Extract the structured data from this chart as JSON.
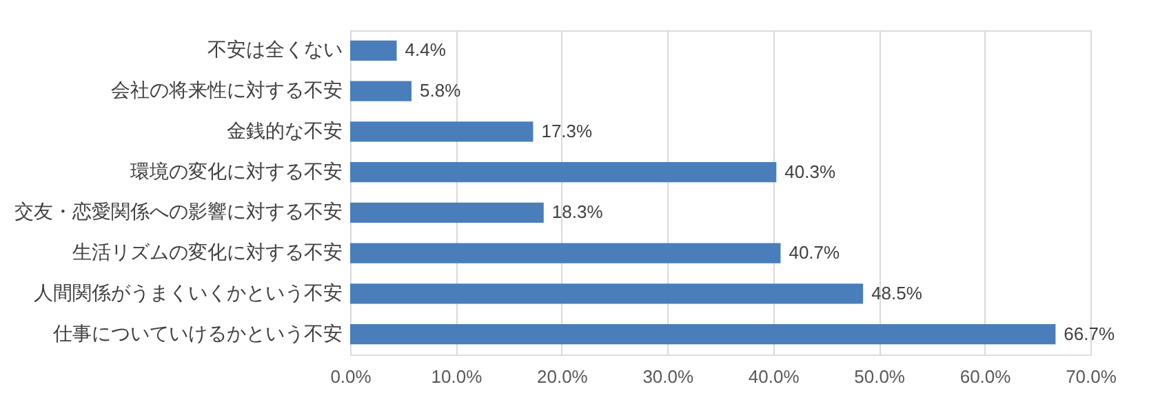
{
  "chart_data": {
    "type": "bar",
    "orientation": "horizontal",
    "categories": [
      "不安は全くない",
      "会社の将来性に対する不安",
      "金銭的な不安",
      "環境の変化に対する不安",
      "交友・恋愛関係への影響に対する不安",
      "生活リズムの変化に対する不安",
      "人間関係がうまくいくかという不安",
      "仕事についていけるかという不安"
    ],
    "values": [
      4.4,
      5.8,
      17.3,
      40.3,
      18.3,
      40.7,
      48.5,
      66.7
    ],
    "value_labels": [
      "4.4%",
      "5.8%",
      "17.3%",
      "40.3%",
      "18.3%",
      "40.7%",
      "48.5%",
      "66.7%"
    ],
    "color": "#4a7ebb",
    "xlim": [
      0,
      70
    ],
    "xticks": [
      {
        "value": 0,
        "label": "0.0%"
      },
      {
        "value": 10,
        "label": "10.0%"
      },
      {
        "value": 20,
        "label": "20.0%"
      },
      {
        "value": 30,
        "label": "30.0%"
      },
      {
        "value": 40,
        "label": "40.0%"
      },
      {
        "value": 50,
        "label": "50.0%"
      },
      {
        "value": 60,
        "label": "60.0%"
      },
      {
        "value": 70,
        "label": "70.0%"
      }
    ],
    "grid": "x"
  }
}
